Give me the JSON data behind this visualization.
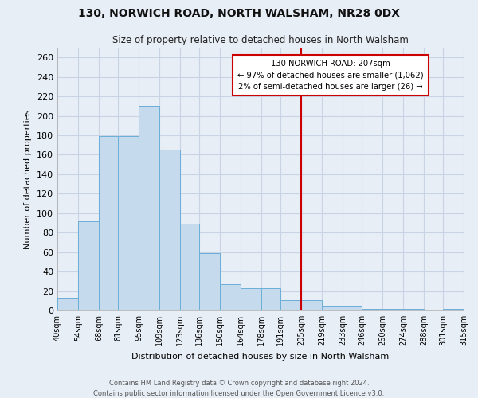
{
  "title": "130, NORWICH ROAD, NORTH WALSHAM, NR28 0DX",
  "subtitle": "Size of property relative to detached houses in North Walsham",
  "xlabel": "Distribution of detached houses by size in North Walsham",
  "ylabel": "Number of detached properties",
  "bin_labels": [
    "40sqm",
    "54sqm",
    "68sqm",
    "81sqm",
    "95sqm",
    "109sqm",
    "123sqm",
    "136sqm",
    "150sqm",
    "164sqm",
    "178sqm",
    "191sqm",
    "205sqm",
    "219sqm",
    "233sqm",
    "246sqm",
    "260sqm",
    "274sqm",
    "288sqm",
    "301sqm",
    "315sqm"
  ],
  "bar_heights": [
    12,
    92,
    179,
    179,
    210,
    165,
    89,
    59,
    27,
    23,
    23,
    11,
    11,
    4,
    4,
    2,
    2,
    2,
    1,
    2
  ],
  "bin_edges": [
    40,
    54,
    68,
    81,
    95,
    109,
    123,
    136,
    150,
    164,
    178,
    191,
    205,
    219,
    233,
    246,
    260,
    274,
    288,
    301,
    315
  ],
  "bar_color": "#c5dbed",
  "bar_edge_color": "#6aaed6",
  "vline_x": 205,
  "vline_color": "#cc0000",
  "annotation_title": "130 NORWICH ROAD: 207sqm",
  "annotation_line1": "← 97% of detached houses are smaller (1,062)",
  "annotation_line2": "2% of semi-detached houses are larger (26) →",
  "annotation_box_color": "#ffffff",
  "annotation_box_edge_color": "#cc0000",
  "ylim": [
    0,
    270
  ],
  "yticks": [
    0,
    20,
    40,
    60,
    80,
    100,
    120,
    140,
    160,
    180,
    200,
    220,
    240,
    260
  ],
  "grid_color": "#c8d4e4",
  "bg_color": "#e8eef6",
  "footer1": "Contains HM Land Registry data © Crown copyright and database right 2024.",
  "footer2": "Contains public sector information licensed under the Open Government Licence v3.0."
}
